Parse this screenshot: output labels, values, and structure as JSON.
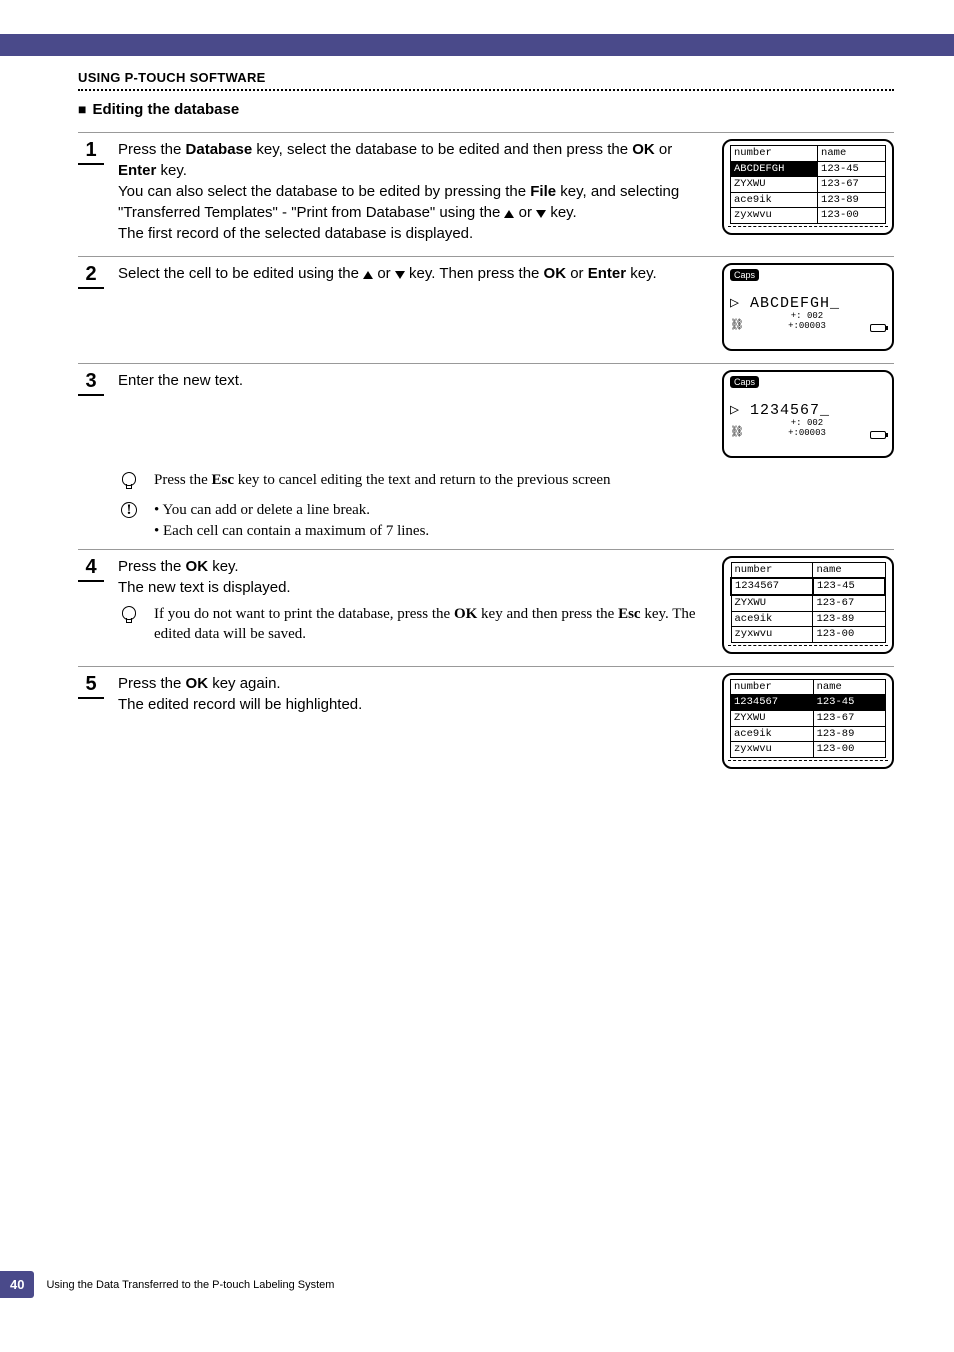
{
  "header": {
    "section": "USING P-TOUCH SOFTWARE",
    "subsection": "Editing the database"
  },
  "steps": [
    {
      "n": "1",
      "html": "Press the <b>Database</b> key, select the database to be edited and then press the <b>OK</b> or <b>Enter</b> key.<br>You can also select the database to be edited by pressing the <b>File</b> key, and selecting \"Transferred Templates\" - \"Print from Database\" using the <span class='tri-up'></span> or <span class='tri-dn'></span> key.<br>The first record of the selected database is displayed.",
      "screen": {
        "type": "table",
        "headers": [
          "number",
          "name"
        ],
        "rows": [
          [
            "ABCDEFGH",
            "123-45"
          ],
          [
            "ZYXWU",
            "123-67"
          ],
          [
            "ace9ik",
            "123-89"
          ],
          [
            "zyxwvu",
            "123-00"
          ]
        ],
        "highlight_row": 0,
        "highlight_col": 0
      }
    },
    {
      "n": "2",
      "html": "Select the cell to be edited using the <span class='tri-up'></span> or <span class='tri-dn'></span> key. Then press the <b>OK</b> or <b>Enter</b> key.",
      "screen": {
        "type": "text",
        "text": "ABCDEFGH_",
        "foot_a": "+:  002",
        "foot_b": "+:00003"
      }
    },
    {
      "n": "3",
      "html": "Enter the new text.",
      "screen": {
        "type": "text",
        "text": "1234567_",
        "foot_a": "+:  002",
        "foot_b": "+:00003"
      }
    }
  ],
  "note1": "Press the <b>Esc</b> key to cancel editing the text and return to the previous screen",
  "note2": "• You can add or delete a line break.<br>• Each cell can contain a maximum of 7 lines.",
  "steps_b": [
    {
      "n": "4",
      "html": "Press the <b>OK</b> key.<br>The new text is displayed.",
      "subnote": "If you do not want to print the database, press the <b>OK</b> key and then press the <b>Esc</b> key. The edited data will be saved.",
      "screen": {
        "type": "table",
        "headers": [
          "number",
          "name"
        ],
        "rows": [
          [
            "1234567",
            "123-45"
          ],
          [
            "ZYXWU",
            "123-67"
          ],
          [
            "ace9ik",
            "123-89"
          ],
          [
            "zyxwvu",
            "123-00"
          ]
        ],
        "highlight_row": -1,
        "box_row": 0
      }
    },
    {
      "n": "5",
      "html": "Press the <b>OK</b> key again.<br>The edited record will be highlighted.",
      "screen": {
        "type": "table",
        "headers": [
          "number",
          "name"
        ],
        "rows": [
          [
            "1234567",
            "123-45"
          ],
          [
            "ZYXWU",
            "123-67"
          ],
          [
            "ace9ik",
            "123-89"
          ],
          [
            "zyxwvu",
            "123-00"
          ]
        ],
        "highlight_row": 0,
        "highlight_full": true
      }
    }
  ],
  "footer": {
    "page": "40",
    "text": "Using the Data Transferred to the P-touch Labeling System"
  }
}
